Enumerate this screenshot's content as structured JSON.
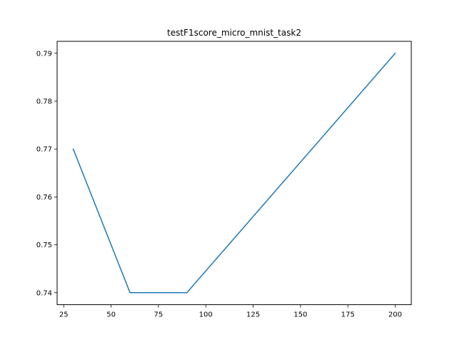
{
  "chart_data": {
    "type": "line",
    "title": "testF1score_micro_mnist_task2",
    "xlabel": "",
    "ylabel": "",
    "series": [
      {
        "x": [
          30,
          60,
          90,
          200
        ],
        "y": [
          0.77,
          0.74,
          0.74,
          0.79
        ],
        "color": "#1f77b4"
      }
    ],
    "xlim": [
      21.5,
      208.5
    ],
    "ylim": [
      0.7375,
      0.7925
    ],
    "xticks": [
      25,
      50,
      75,
      100,
      125,
      150,
      175,
      200
    ],
    "xtick_labels": [
      "25",
      "50",
      "75",
      "100",
      "125",
      "150",
      "175",
      "200"
    ],
    "yticks": [
      0.74,
      0.75,
      0.76,
      0.77,
      0.78,
      0.79
    ],
    "ytick_labels": [
      "0.74",
      "0.75",
      "0.76",
      "0.77",
      "0.78",
      "0.79"
    ],
    "grid": false,
    "legend": "none"
  }
}
